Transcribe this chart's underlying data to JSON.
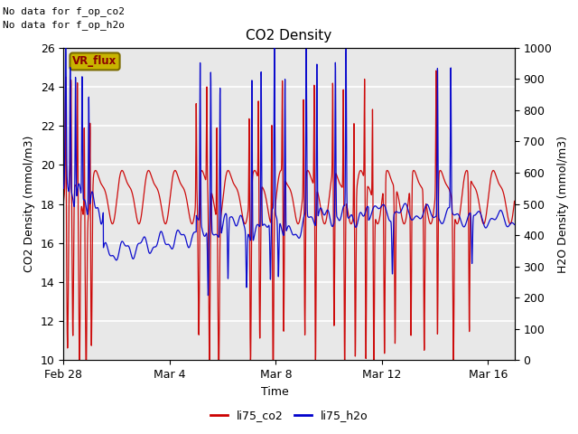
{
  "title": "CO2 Density",
  "xlabel": "Time",
  "ylabel_left": "CO2 Density (mmol/m3)",
  "ylabel_right": "H2O Density (mmol/m3)",
  "top_text_1": "No data for f_op_co2",
  "top_text_2": "No data for f_op_h2o",
  "annotation_text": "VR_flux",
  "annotation_color": "#8B0000",
  "annotation_bg": "#C8B400",
  "annotation_edge": "#7A6A00",
  "xlim_days": [
    0,
    17
  ],
  "ylim_left": [
    10,
    26
  ],
  "ylim_right": [
    0,
    1000
  ],
  "yticks_left": [
    10,
    12,
    14,
    16,
    18,
    20,
    22,
    24,
    26
  ],
  "yticks_right": [
    0,
    100,
    200,
    300,
    400,
    500,
    600,
    700,
    800,
    900,
    1000
  ],
  "xtick_labels": [
    "Feb 28",
    "Mar 4",
    "Mar 8",
    "Mar 12",
    "Mar 16"
  ],
  "xtick_positions": [
    0,
    4,
    8,
    12,
    16
  ],
  "legend_labels": [
    "li75_co2",
    "li75_h2o"
  ],
  "legend_colors": [
    "#cc0000",
    "#0000cc"
  ],
  "co2_color": "#cc0000",
  "h2o_color": "#0000cc",
  "plot_bg": "#e8e8e8",
  "grid_color": "white",
  "figsize": [
    6.4,
    4.8
  ],
  "dpi": 100
}
